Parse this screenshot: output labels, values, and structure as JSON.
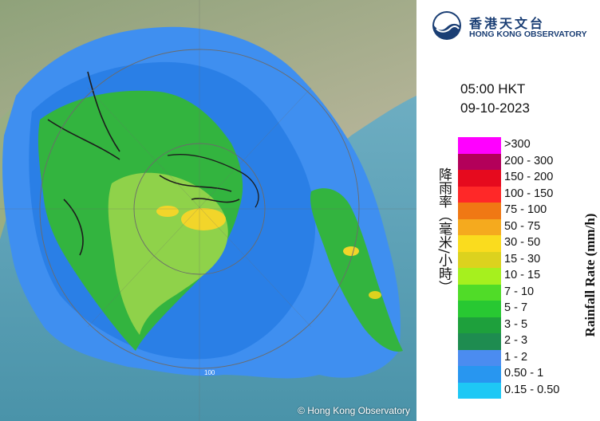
{
  "map": {
    "range_ring_label": "100",
    "credit": "© Hong Kong Observatory"
  },
  "header": {
    "logo_zh": "香港天文台",
    "logo_en": "HONG KONG OBSERVATORY",
    "time": "05:00 HKT",
    "date": "09-10-2023"
  },
  "legend": {
    "title_zh": "降雨率（毫米/小時）",
    "title_en": "Rainfall Rate (mm/h)",
    "items": [
      {
        "label": ">300",
        "color": "#ff00ff"
      },
      {
        "label": "200 - 300",
        "color": "#b3005a"
      },
      {
        "label": "150 - 200",
        "color": "#e60a1e"
      },
      {
        "label": "100 - 150",
        "color": "#ff2828"
      },
      {
        "label": "75 - 100",
        "color": "#f07814"
      },
      {
        "label": "50 - 75",
        "color": "#f5aa1e"
      },
      {
        "label": "30 - 50",
        "color": "#fadc1e"
      },
      {
        "label": "15 - 30",
        "color": "#dcd21e"
      },
      {
        "label": "10 - 15",
        "color": "#a6f01e"
      },
      {
        "label": "7 - 10",
        "color": "#50dc28"
      },
      {
        "label": "5 - 7",
        "color": "#28c832"
      },
      {
        "label": "3 - 5",
        "color": "#1ea03c"
      },
      {
        "label": "2 - 3",
        "color": "#1e8c50"
      },
      {
        "label": "1 - 2",
        "color": "#4b8cf0"
      },
      {
        "label": "0.50 - 1",
        "color": "#2896f0"
      },
      {
        "label": "0.15 - 0.50",
        "color": "#1ec8f5"
      }
    ]
  }
}
